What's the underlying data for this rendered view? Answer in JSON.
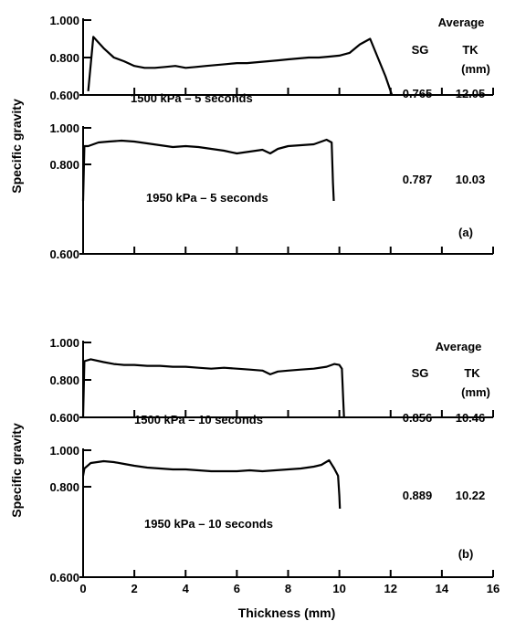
{
  "chart_data": [
    {
      "type": "line",
      "panel": "(a)",
      "ylabel": "Specific gravity",
      "xlabel": "",
      "header": {
        "title": "Average",
        "col1": "SG",
        "col2": "TK",
        "col2_unit": "(mm)"
      },
      "xlim": [
        0,
        16
      ],
      "x_ticks": [
        "0",
        "2",
        "4",
        "6",
        "8",
        "10",
        "12",
        "14",
        "16"
      ],
      "subplots": [
        {
          "label": "1500 kPa – 5 seconds",
          "sg": "0.765",
          "tk": "12.05",
          "ylim": [
            0.6,
            1.0
          ],
          "y_ticks": [
            "0.600",
            "0.800",
            "1.000"
          ],
          "x": [
            0.2,
            0.4,
            0.8,
            1.2,
            1.6,
            2.0,
            2.4,
            2.8,
            3.2,
            3.6,
            4.0,
            4.4,
            4.8,
            5.2,
            5.6,
            6.0,
            6.4,
            6.8,
            7.2,
            7.6,
            8.0,
            8.4,
            8.8,
            9.2,
            9.6,
            10.0,
            10.4,
            10.8,
            11.2,
            11.5,
            11.8,
            12.05
          ],
          "values": [
            0.62,
            0.91,
            0.85,
            0.8,
            0.78,
            0.755,
            0.745,
            0.745,
            0.75,
            0.755,
            0.745,
            0.75,
            0.755,
            0.76,
            0.765,
            0.77,
            0.77,
            0.775,
            0.78,
            0.785,
            0.79,
            0.795,
            0.8,
            0.8,
            0.805,
            0.81,
            0.825,
            0.87,
            0.9,
            0.8,
            0.7,
            0.6
          ]
        },
        {
          "label": "1950 kPa – 5 seconds",
          "sg": "0.787",
          "tk": "10.03",
          "ylim": [
            0.6,
            1.0
          ],
          "y_ticks": [
            "0.600",
            "0.800",
            "1.000"
          ],
          "x": [
            0.0,
            0.05,
            0.2,
            0.6,
            1.0,
            1.5,
            2.0,
            2.5,
            3.0,
            3.5,
            4.0,
            4.5,
            5.0,
            5.5,
            6.0,
            6.5,
            7.0,
            7.3,
            7.6,
            8.0,
            8.5,
            9.0,
            9.3,
            9.5,
            9.7,
            9.75,
            9.78
          ],
          "values": [
            0.6,
            0.9,
            0.9,
            0.92,
            0.925,
            0.93,
            0.925,
            0.915,
            0.905,
            0.895,
            0.9,
            0.895,
            0.885,
            0.875,
            0.86,
            0.87,
            0.88,
            0.86,
            0.885,
            0.9,
            0.905,
            0.91,
            0.925,
            0.935,
            0.92,
            0.7,
            0.6
          ]
        }
      ]
    },
    {
      "type": "line",
      "panel": "(b)",
      "ylabel": "Specific gravity",
      "xlabel": "Thickness (mm)",
      "header": {
        "title": "Average",
        "col1": "SG",
        "col2": "TK",
        "col2_unit": "(mm)"
      },
      "xlim": [
        0,
        16
      ],
      "x_ticks": [
        "0",
        "2",
        "4",
        "6",
        "8",
        "10",
        "12",
        "14",
        "16"
      ],
      "subplots": [
        {
          "label": "1500 kPa – 10 seconds",
          "sg": "0.856",
          "tk": "10.46",
          "ylim": [
            0.6,
            1.0
          ],
          "y_ticks": [
            "0.600",
            "0.800",
            "1.000"
          ],
          "x": [
            0.0,
            0.05,
            0.3,
            0.8,
            1.2,
            1.6,
            2.0,
            2.5,
            3.0,
            3.5,
            4.0,
            4.5,
            5.0,
            5.5,
            6.0,
            6.5,
            7.0,
            7.3,
            7.6,
            8.0,
            8.5,
            9.0,
            9.5,
            9.8,
            10.0,
            10.1,
            10.15,
            10.18
          ],
          "values": [
            0.6,
            0.9,
            0.91,
            0.895,
            0.885,
            0.88,
            0.88,
            0.875,
            0.875,
            0.87,
            0.87,
            0.865,
            0.86,
            0.865,
            0.86,
            0.855,
            0.85,
            0.83,
            0.845,
            0.85,
            0.855,
            0.86,
            0.87,
            0.885,
            0.88,
            0.86,
            0.7,
            0.6
          ]
        },
        {
          "label": "1950 kPa – 10 seconds",
          "sg": "0.889",
          "tk": "10.22",
          "ylim": [
            0.6,
            1.0
          ],
          "y_ticks": [
            "0.600",
            "0.800",
            "1.000"
          ],
          "x": [
            0.0,
            0.05,
            0.3,
            0.8,
            1.2,
            1.6,
            2.0,
            2.5,
            3.0,
            3.5,
            4.0,
            4.5,
            5.0,
            5.5,
            6.0,
            6.5,
            7.0,
            7.5,
            8.0,
            8.5,
            9.0,
            9.3,
            9.6,
            9.8,
            9.95,
            10.0,
            10.02
          ],
          "values": [
            0.86,
            0.9,
            0.93,
            0.94,
            0.935,
            0.925,
            0.915,
            0.905,
            0.9,
            0.895,
            0.895,
            0.89,
            0.885,
            0.885,
            0.885,
            0.89,
            0.885,
            0.89,
            0.895,
            0.9,
            0.91,
            0.92,
            0.945,
            0.9,
            0.86,
            0.75,
            0.68
          ]
        }
      ]
    }
  ]
}
